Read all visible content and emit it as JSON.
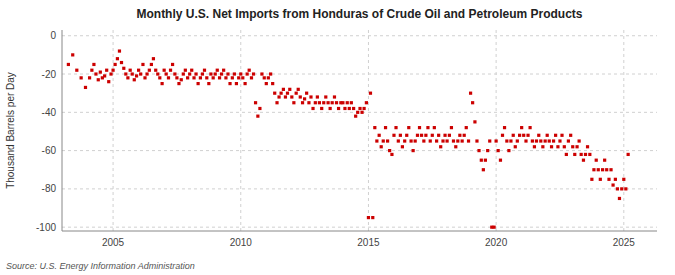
{
  "chart_data": {
    "type": "scatter",
    "title": "Monthly U.S. Net Imports from Honduras of Crude Oil and Petroleum Products",
    "ylabel": "Thousand Barrels per Day",
    "annotations": [
      "Source: U.S. Energy Information Administration"
    ],
    "color": "#CC0000",
    "marker": "square",
    "grid": true,
    "xlim": [
      2003.0,
      2026.3
    ],
    "ylim": [
      -102,
      3
    ],
    "xticks": [
      2005,
      2010,
      2015,
      2020,
      2025
    ],
    "yticks": [
      0,
      -20,
      -40,
      -60,
      -80,
      -100
    ],
    "x": [
      2003.25,
      2003.42,
      2003.58,
      2003.75,
      2003.92,
      2004.08,
      2004.17,
      2004.25,
      2004.33,
      2004.42,
      2004.5,
      2004.58,
      2004.67,
      2004.75,
      2004.83,
      2004.92,
      2005.0,
      2005.08,
      2005.17,
      2005.25,
      2005.33,
      2005.42,
      2005.5,
      2005.58,
      2005.67,
      2005.75,
      2005.83,
      2005.92,
      2006.0,
      2006.08,
      2006.17,
      2006.25,
      2006.33,
      2006.42,
      2006.5,
      2006.58,
      2006.67,
      2006.75,
      2006.83,
      2006.92,
      2007.0,
      2007.08,
      2007.17,
      2007.25,
      2007.33,
      2007.42,
      2007.5,
      2007.58,
      2007.67,
      2007.75,
      2007.83,
      2007.92,
      2008.0,
      2008.08,
      2008.17,
      2008.25,
      2008.33,
      2008.42,
      2008.5,
      2008.58,
      2008.67,
      2008.75,
      2008.83,
      2008.92,
      2009.0,
      2009.08,
      2009.17,
      2009.25,
      2009.33,
      2009.42,
      2009.5,
      2009.58,
      2009.67,
      2009.75,
      2009.83,
      2009.92,
      2010.0,
      2010.08,
      2010.17,
      2010.25,
      2010.33,
      2010.42,
      2010.5,
      2010.58,
      2010.67,
      2010.75,
      2010.83,
      2010.92,
      2011.0,
      2011.08,
      2011.17,
      2011.25,
      2011.33,
      2011.42,
      2011.5,
      2011.58,
      2011.67,
      2011.75,
      2011.83,
      2011.92,
      2012.0,
      2012.08,
      2012.17,
      2012.25,
      2012.33,
      2012.42,
      2012.5,
      2012.58,
      2012.67,
      2012.75,
      2012.83,
      2012.92,
      2013.0,
      2013.08,
      2013.17,
      2013.25,
      2013.33,
      2013.42,
      2013.5,
      2013.58,
      2013.67,
      2013.75,
      2013.83,
      2013.92,
      2014.0,
      2014.08,
      2014.17,
      2014.25,
      2014.33,
      2014.42,
      2014.5,
      2014.58,
      2014.67,
      2014.75,
      2014.83,
      2014.92,
      2015.0,
      2015.08,
      2015.17,
      2015.25,
      2015.33,
      2015.42,
      2015.5,
      2015.58,
      2015.67,
      2015.75,
      2015.83,
      2015.92,
      2016.0,
      2016.08,
      2016.17,
      2016.25,
      2016.33,
      2016.42,
      2016.5,
      2016.58,
      2016.67,
      2016.75,
      2016.83,
      2016.92,
      2017.0,
      2017.08,
      2017.17,
      2017.25,
      2017.33,
      2017.42,
      2017.5,
      2017.58,
      2017.67,
      2017.75,
      2017.83,
      2017.92,
      2018.0,
      2018.08,
      2018.17,
      2018.25,
      2018.33,
      2018.42,
      2018.5,
      2018.58,
      2018.67,
      2018.75,
      2018.83,
      2018.92,
      2019.0,
      2019.08,
      2019.17,
      2019.25,
      2019.33,
      2019.42,
      2019.5,
      2019.58,
      2019.67,
      2019.75,
      2019.83,
      2019.92,
      2020.0,
      2020.08,
      2020.17,
      2020.25,
      2020.33,
      2020.42,
      2020.5,
      2020.58,
      2020.67,
      2020.75,
      2020.83,
      2020.92,
      2021.0,
      2021.08,
      2021.17,
      2021.25,
      2021.33,
      2021.42,
      2021.5,
      2021.58,
      2021.67,
      2021.75,
      2021.83,
      2021.92,
      2022.0,
      2022.08,
      2022.17,
      2022.25,
      2022.33,
      2022.42,
      2022.5,
      2022.58,
      2022.67,
      2022.75,
      2022.83,
      2022.92,
      2023.0,
      2023.08,
      2023.17,
      2023.25,
      2023.33,
      2023.42,
      2023.5,
      2023.58,
      2023.67,
      2023.75,
      2023.83,
      2023.92,
      2024.0,
      2024.08,
      2024.17,
      2024.25,
      2024.33,
      2024.42,
      2024.5,
      2024.58,
      2024.67,
      2024.75,
      2024.83,
      2024.92,
      2025.0,
      2025.08,
      2025.17
    ],
    "values": [
      -15,
      -10,
      -18,
      -22,
      -27,
      -22,
      -18,
      -15,
      -20,
      -23,
      -19,
      -22,
      -21,
      -18,
      -24,
      -20,
      -18,
      -15,
      -12,
      -8,
      -14,
      -17,
      -20,
      -22,
      -18,
      -20,
      -23,
      -21,
      -18,
      -20,
      -15,
      -22,
      -20,
      -18,
      -15,
      -12,
      -18,
      -20,
      -22,
      -25,
      -18,
      -20,
      -22,
      -18,
      -15,
      -20,
      -22,
      -25,
      -23,
      -20,
      -18,
      -22,
      -20,
      -18,
      -22,
      -20,
      -25,
      -22,
      -20,
      -18,
      -22,
      -25,
      -20,
      -22,
      -20,
      -18,
      -22,
      -20,
      -18,
      -22,
      -20,
      -25,
      -22,
      -20,
      -25,
      -22,
      -20,
      -22,
      -25,
      -20,
      -18,
      -22,
      -20,
      -35,
      -42,
      -38,
      -20,
      -22,
      -25,
      -22,
      -20,
      -25,
      -30,
      -35,
      -32,
      -30,
      -28,
      -32,
      -30,
      -28,
      -32,
      -35,
      -30,
      -28,
      -32,
      -35,
      -33,
      -30,
      -35,
      -32,
      -38,
      -35,
      -32,
      -35,
      -38,
      -35,
      -32,
      -35,
      -38,
      -35,
      -32,
      -35,
      -38,
      -35,
      -35,
      -38,
      -35,
      -38,
      -35,
      -38,
      -42,
      -40,
      -38,
      -40,
      -38,
      -35,
      -95,
      -30,
      -95,
      -48,
      -55,
      -52,
      -58,
      -55,
      -48,
      -55,
      -60,
      -62,
      -52,
      -48,
      -55,
      -52,
      -58,
      -55,
      -52,
      -48,
      -55,
      -60,
      -55,
      -52,
      -48,
      -52,
      -55,
      -52,
      -48,
      -55,
      -52,
      -48,
      -55,
      -52,
      -58,
      -55,
      -52,
      -55,
      -52,
      -48,
      -55,
      -58,
      -55,
      -52,
      -55,
      -52,
      -48,
      -55,
      -30,
      -35,
      -45,
      -55,
      -60,
      -65,
      -70,
      -65,
      -60,
      -55,
      -100,
      -100,
      -55,
      -60,
      -65,
      -52,
      -48,
      -55,
      -60,
      -55,
      -52,
      -58,
      -55,
      -52,
      -48,
      -52,
      -55,
      -52,
      -48,
      -55,
      -58,
      -55,
      -52,
      -55,
      -58,
      -55,
      -52,
      -55,
      -58,
      -55,
      -52,
      -58,
      -55,
      -52,
      -58,
      -62,
      -55,
      -52,
      -58,
      -62,
      -58,
      -55,
      -62,
      -65,
      -62,
      -58,
      -62,
      -75,
      -70,
      -65,
      -70,
      -75,
      -70,
      -65,
      -70,
      -75,
      -70,
      -78,
      -75,
      -80,
      -85,
      -80,
      -75,
      -80,
      -62
    ]
  }
}
